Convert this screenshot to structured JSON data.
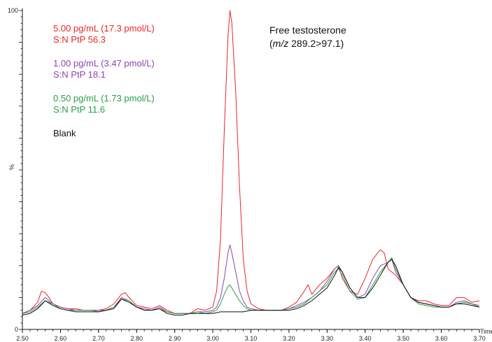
{
  "chart_data": {
    "type": "line",
    "title": "Free testosterone",
    "subtitle_italic": "m/z",
    "subtitle_rest": " 289.2>97.1)",
    "subtitle_open": "(",
    "xlabel": "Time",
    "ylabel": "%",
    "xlim": [
      2.5,
      3.7
    ],
    "ylim": [
      0,
      100
    ],
    "x_ticks": [
      "2.50",
      "2.60",
      "2.70",
      "2.80",
      "2.90",
      "3.00",
      "3.10",
      "3.20",
      "3.30",
      "3.40",
      "3.50",
      "3.60",
      "3.70"
    ],
    "y_ticks": [
      "100",
      "0"
    ],
    "annotations": [
      {
        "line1": "5.00 pg/mL (17.3 pmol/L)",
        "line2": "S:N PtP 56.3",
        "color": "#e8262b"
      },
      {
        "line1": "1.00 pg/mL (3.47 pmol/L)",
        "line2": "S:N PtP 18.1",
        "color": "#8e44ad"
      },
      {
        "line1": "0.50 pg/mL (1.73 pmol/L)",
        "line2": "S:N PtP 11.6",
        "color": "#2a9d48"
      },
      {
        "line1": "Blank",
        "line2": "",
        "color": "#111111"
      }
    ],
    "series": [
      {
        "color": "#e8262b",
        "points": [
          [
            2.5,
            5.0
          ],
          [
            2.52,
            6.0
          ],
          [
            2.54,
            8.5
          ],
          [
            2.55,
            12.0
          ],
          [
            2.56,
            11.5
          ],
          [
            2.57,
            10.0
          ],
          [
            2.58,
            8.0
          ],
          [
            2.6,
            7.0
          ],
          [
            2.62,
            6.5
          ],
          [
            2.64,
            6.5
          ],
          [
            2.66,
            6.0
          ],
          [
            2.68,
            6.0
          ],
          [
            2.7,
            6.0
          ],
          [
            2.72,
            6.5
          ],
          [
            2.74,
            8.0
          ],
          [
            2.76,
            11.0
          ],
          [
            2.77,
            11.5
          ],
          [
            2.78,
            10.0
          ],
          [
            2.8,
            7.5
          ],
          [
            2.82,
            7.0
          ],
          [
            2.84,
            6.5
          ],
          [
            2.86,
            7.5
          ],
          [
            2.88,
            6.0
          ],
          [
            2.9,
            5.0
          ],
          [
            2.92,
            5.0
          ],
          [
            2.94,
            5.0
          ],
          [
            2.96,
            6.5
          ],
          [
            2.98,
            6.0
          ],
          [
            3.0,
            7.0
          ],
          [
            3.01,
            12.0
          ],
          [
            3.02,
            28.0
          ],
          [
            3.03,
            62.0
          ],
          [
            3.04,
            92.0
          ],
          [
            3.045,
            100.0
          ],
          [
            3.05,
            96.0
          ],
          [
            3.06,
            75.0
          ],
          [
            3.07,
            45.0
          ],
          [
            3.08,
            22.0
          ],
          [
            3.09,
            12.0
          ],
          [
            3.1,
            8.0
          ],
          [
            3.12,
            6.5
          ],
          [
            3.14,
            6.0
          ],
          [
            3.16,
            6.0
          ],
          [
            3.18,
            6.0
          ],
          [
            3.2,
            7.0
          ],
          [
            3.22,
            8.5
          ],
          [
            3.24,
            12.0
          ],
          [
            3.25,
            14.0
          ],
          [
            3.26,
            11.0
          ],
          [
            3.28,
            14.0
          ],
          [
            3.3,
            16.0
          ],
          [
            3.32,
            19.0
          ],
          [
            3.33,
            20.0
          ],
          [
            3.34,
            16.0
          ],
          [
            3.36,
            12.0
          ],
          [
            3.38,
            11.0
          ],
          [
            3.4,
            16.0
          ],
          [
            3.42,
            22.0
          ],
          [
            3.44,
            25.0
          ],
          [
            3.45,
            24.0
          ],
          [
            3.46,
            19.0
          ],
          [
            3.48,
            17.0
          ],
          [
            3.5,
            14.0
          ],
          [
            3.52,
            10.0
          ],
          [
            3.54,
            9.0
          ],
          [
            3.56,
            9.0
          ],
          [
            3.58,
            8.0
          ],
          [
            3.6,
            7.5
          ],
          [
            3.62,
            7.5
          ],
          [
            3.64,
            10.0
          ],
          [
            3.66,
            10.0
          ],
          [
            3.68,
            8.5
          ],
          [
            3.7,
            9.0
          ]
        ]
      },
      {
        "color": "#8e44ad",
        "points": [
          [
            2.5,
            5.0
          ],
          [
            2.52,
            6.0
          ],
          [
            2.54,
            7.5
          ],
          [
            2.56,
            10.0
          ],
          [
            2.58,
            8.0
          ],
          [
            2.6,
            7.0
          ],
          [
            2.62,
            6.5
          ],
          [
            2.64,
            6.0
          ],
          [
            2.66,
            6.0
          ],
          [
            2.68,
            6.0
          ],
          [
            2.7,
            6.0
          ],
          [
            2.72,
            6.0
          ],
          [
            2.74,
            7.0
          ],
          [
            2.76,
            10.0
          ],
          [
            2.78,
            9.0
          ],
          [
            2.8,
            7.0
          ],
          [
            2.82,
            6.5
          ],
          [
            2.84,
            6.0
          ],
          [
            2.86,
            7.0
          ],
          [
            2.88,
            5.5
          ],
          [
            2.9,
            5.0
          ],
          [
            2.92,
            5.0
          ],
          [
            2.94,
            5.0
          ],
          [
            2.96,
            5.5
          ],
          [
            2.98,
            5.5
          ],
          [
            3.0,
            6.0
          ],
          [
            3.01,
            7.0
          ],
          [
            3.02,
            10.0
          ],
          [
            3.03,
            16.0
          ],
          [
            3.04,
            24.0
          ],
          [
            3.045,
            26.5
          ],
          [
            3.05,
            24.0
          ],
          [
            3.06,
            18.0
          ],
          [
            3.07,
            12.0
          ],
          [
            3.08,
            9.0
          ],
          [
            3.09,
            7.0
          ],
          [
            3.1,
            6.5
          ],
          [
            3.12,
            6.0
          ],
          [
            3.14,
            6.0
          ],
          [
            3.16,
            6.0
          ],
          [
            3.18,
            6.0
          ],
          [
            3.2,
            6.5
          ],
          [
            3.22,
            7.5
          ],
          [
            3.24,
            8.5
          ],
          [
            3.26,
            10.0
          ],
          [
            3.28,
            12.0
          ],
          [
            3.3,
            15.0
          ],
          [
            3.32,
            19.0
          ],
          [
            3.33,
            20.0
          ],
          [
            3.34,
            18.0
          ],
          [
            3.36,
            13.0
          ],
          [
            3.38,
            10.0
          ],
          [
            3.4,
            11.0
          ],
          [
            3.42,
            16.0
          ],
          [
            3.44,
            20.0
          ],
          [
            3.46,
            21.0
          ],
          [
            3.47,
            22.0
          ],
          [
            3.48,
            18.0
          ],
          [
            3.5,
            14.0
          ],
          [
            3.52,
            10.0
          ],
          [
            3.54,
            8.5
          ],
          [
            3.56,
            8.0
          ],
          [
            3.58,
            7.5
          ],
          [
            3.6,
            7.0
          ],
          [
            3.62,
            7.0
          ],
          [
            3.64,
            8.5
          ],
          [
            3.66,
            9.0
          ],
          [
            3.68,
            8.0
          ],
          [
            3.7,
            7.5
          ]
        ]
      },
      {
        "color": "#2a9d48",
        "points": [
          [
            2.5,
            5.0
          ],
          [
            2.52,
            5.5
          ],
          [
            2.54,
            7.0
          ],
          [
            2.56,
            9.0
          ],
          [
            2.58,
            8.0
          ],
          [
            2.6,
            6.5
          ],
          [
            2.62,
            6.0
          ],
          [
            2.64,
            6.0
          ],
          [
            2.66,
            6.0
          ],
          [
            2.68,
            6.0
          ],
          [
            2.7,
            5.5
          ],
          [
            2.72,
            6.0
          ],
          [
            2.74,
            7.0
          ],
          [
            2.76,
            9.5
          ],
          [
            2.78,
            9.0
          ],
          [
            2.8,
            7.0
          ],
          [
            2.82,
            6.0
          ],
          [
            2.84,
            6.0
          ],
          [
            2.86,
            6.5
          ],
          [
            2.88,
            5.5
          ],
          [
            2.9,
            5.0
          ],
          [
            2.92,
            5.0
          ],
          [
            2.94,
            5.0
          ],
          [
            2.96,
            5.5
          ],
          [
            2.98,
            5.0
          ],
          [
            3.0,
            5.5
          ],
          [
            3.01,
            6.0
          ],
          [
            3.02,
            8.0
          ],
          [
            3.03,
            11.0
          ],
          [
            3.04,
            13.5
          ],
          [
            3.045,
            14.0
          ],
          [
            3.05,
            13.0
          ],
          [
            3.06,
            11.0
          ],
          [
            3.07,
            9.0
          ],
          [
            3.08,
            7.5
          ],
          [
            3.09,
            6.5
          ],
          [
            3.1,
            6.0
          ],
          [
            3.12,
            6.0
          ],
          [
            3.14,
            6.0
          ],
          [
            3.16,
            6.0
          ],
          [
            3.18,
            6.0
          ],
          [
            3.2,
            6.5
          ],
          [
            3.22,
            7.0
          ],
          [
            3.24,
            8.0
          ],
          [
            3.26,
            10.0
          ],
          [
            3.28,
            12.0
          ],
          [
            3.3,
            14.0
          ],
          [
            3.32,
            18.0
          ],
          [
            3.33,
            19.0
          ],
          [
            3.34,
            17.0
          ],
          [
            3.36,
            12.0
          ],
          [
            3.38,
            9.5
          ],
          [
            3.4,
            10.0
          ],
          [
            3.42,
            14.0
          ],
          [
            3.44,
            18.0
          ],
          [
            3.46,
            21.0
          ],
          [
            3.47,
            22.5
          ],
          [
            3.48,
            19.0
          ],
          [
            3.5,
            14.0
          ],
          [
            3.52,
            10.0
          ],
          [
            3.54,
            8.0
          ],
          [
            3.56,
            7.5
          ],
          [
            3.58,
            7.0
          ],
          [
            3.6,
            7.0
          ],
          [
            3.62,
            7.0
          ],
          [
            3.64,
            8.0
          ],
          [
            3.66,
            8.5
          ],
          [
            3.68,
            8.0
          ],
          [
            3.7,
            7.0
          ]
        ]
      },
      {
        "color": "#111111",
        "points": [
          [
            2.5,
            4.5
          ],
          [
            2.52,
            5.0
          ],
          [
            2.54,
            6.5
          ],
          [
            2.56,
            9.0
          ],
          [
            2.58,
            7.5
          ],
          [
            2.6,
            6.5
          ],
          [
            2.62,
            6.0
          ],
          [
            2.64,
            5.5
          ],
          [
            2.66,
            5.5
          ],
          [
            2.68,
            5.5
          ],
          [
            2.7,
            5.5
          ],
          [
            2.72,
            6.0
          ],
          [
            2.74,
            6.5
          ],
          [
            2.76,
            9.5
          ],
          [
            2.78,
            8.5
          ],
          [
            2.8,
            7.0
          ],
          [
            2.82,
            6.0
          ],
          [
            2.84,
            6.0
          ],
          [
            2.86,
            6.5
          ],
          [
            2.88,
            5.0
          ],
          [
            2.9,
            4.5
          ],
          [
            2.92,
            4.5
          ],
          [
            2.94,
            5.0
          ],
          [
            2.96,
            5.0
          ],
          [
            2.98,
            5.0
          ],
          [
            3.0,
            5.0
          ],
          [
            3.02,
            5.5
          ],
          [
            3.04,
            5.5
          ],
          [
            3.06,
            5.5
          ],
          [
            3.08,
            5.5
          ],
          [
            3.1,
            6.0
          ],
          [
            3.12,
            6.0
          ],
          [
            3.14,
            6.0
          ],
          [
            3.16,
            6.0
          ],
          [
            3.18,
            6.0
          ],
          [
            3.2,
            6.0
          ],
          [
            3.22,
            6.5
          ],
          [
            3.24,
            7.5
          ],
          [
            3.26,
            9.0
          ],
          [
            3.28,
            11.0
          ],
          [
            3.3,
            13.0
          ],
          [
            3.32,
            17.0
          ],
          [
            3.33,
            19.5
          ],
          [
            3.34,
            18.0
          ],
          [
            3.36,
            13.0
          ],
          [
            3.38,
            10.0
          ],
          [
            3.4,
            10.0
          ],
          [
            3.42,
            13.0
          ],
          [
            3.44,
            17.0
          ],
          [
            3.46,
            21.0
          ],
          [
            3.47,
            22.0
          ],
          [
            3.48,
            20.0
          ],
          [
            3.5,
            14.0
          ],
          [
            3.52,
            10.0
          ],
          [
            3.54,
            8.5
          ],
          [
            3.56,
            8.0
          ],
          [
            3.58,
            7.5
          ],
          [
            3.6,
            7.0
          ],
          [
            3.62,
            7.0
          ],
          [
            3.64,
            8.0
          ],
          [
            3.66,
            8.0
          ],
          [
            3.68,
            7.5
          ],
          [
            3.7,
            7.0
          ]
        ]
      }
    ]
  }
}
